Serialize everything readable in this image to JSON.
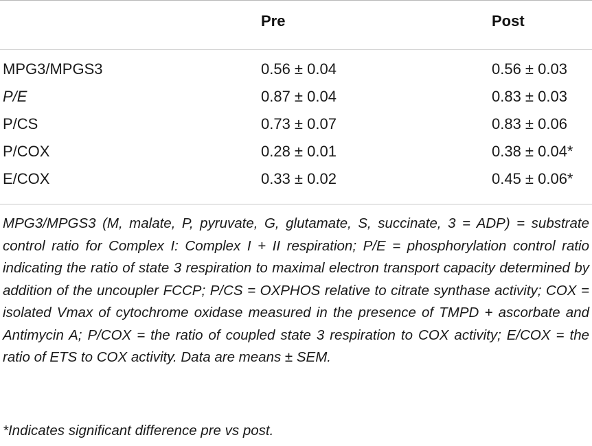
{
  "table": {
    "headers": {
      "col0": "",
      "pre": "Pre",
      "post": "Post"
    },
    "rows": [
      {
        "label": "MPG3/MPGS3",
        "pre": "0.56 ± 0.04",
        "post": "0.56 ± 0.03",
        "italic_label": false
      },
      {
        "label": "P/E",
        "pre": "0.87 ± 0.04",
        "post": "0.83 ± 0.03",
        "italic_label": true
      },
      {
        "label": "P/CS",
        "pre": "0.73 ± 0.07",
        "post": "0.83 ± 0.06",
        "italic_label": false
      },
      {
        "label": "P/COX",
        "pre": "0.28 ± 0.01",
        "post": "0.38 ± 0.04*",
        "italic_label": false
      },
      {
        "label": "E/COX",
        "pre": "0.33 ± 0.02",
        "post": "0.45 ± 0.06*",
        "italic_label": false
      }
    ]
  },
  "footnotes": {
    "abbreviations": "MPG3/MPGS3 (M, malate, P, pyruvate, G, glutamate, S, succinate, 3 = ADP) = substrate control ratio for Complex I: Complex I + II respiration; P/E = phosphorylation control ratio indicating the ratio of state 3 respiration to maximal electron transport capacity determined by addition of the uncoupler FCCP; P/CS = OXPHOS relative to citrate synthase activity; COX = isolated Vmax of cytochrome oxidase measured in the presence of TMPD + ascorbate and Antimycin A; P/COX = the ratio of coupled state 3 respiration to COX activity; E/COX = the ratio of ETS to COX activity. Data are means ± SEM.",
    "significance": "*Indicates significant difference pre vs post."
  }
}
